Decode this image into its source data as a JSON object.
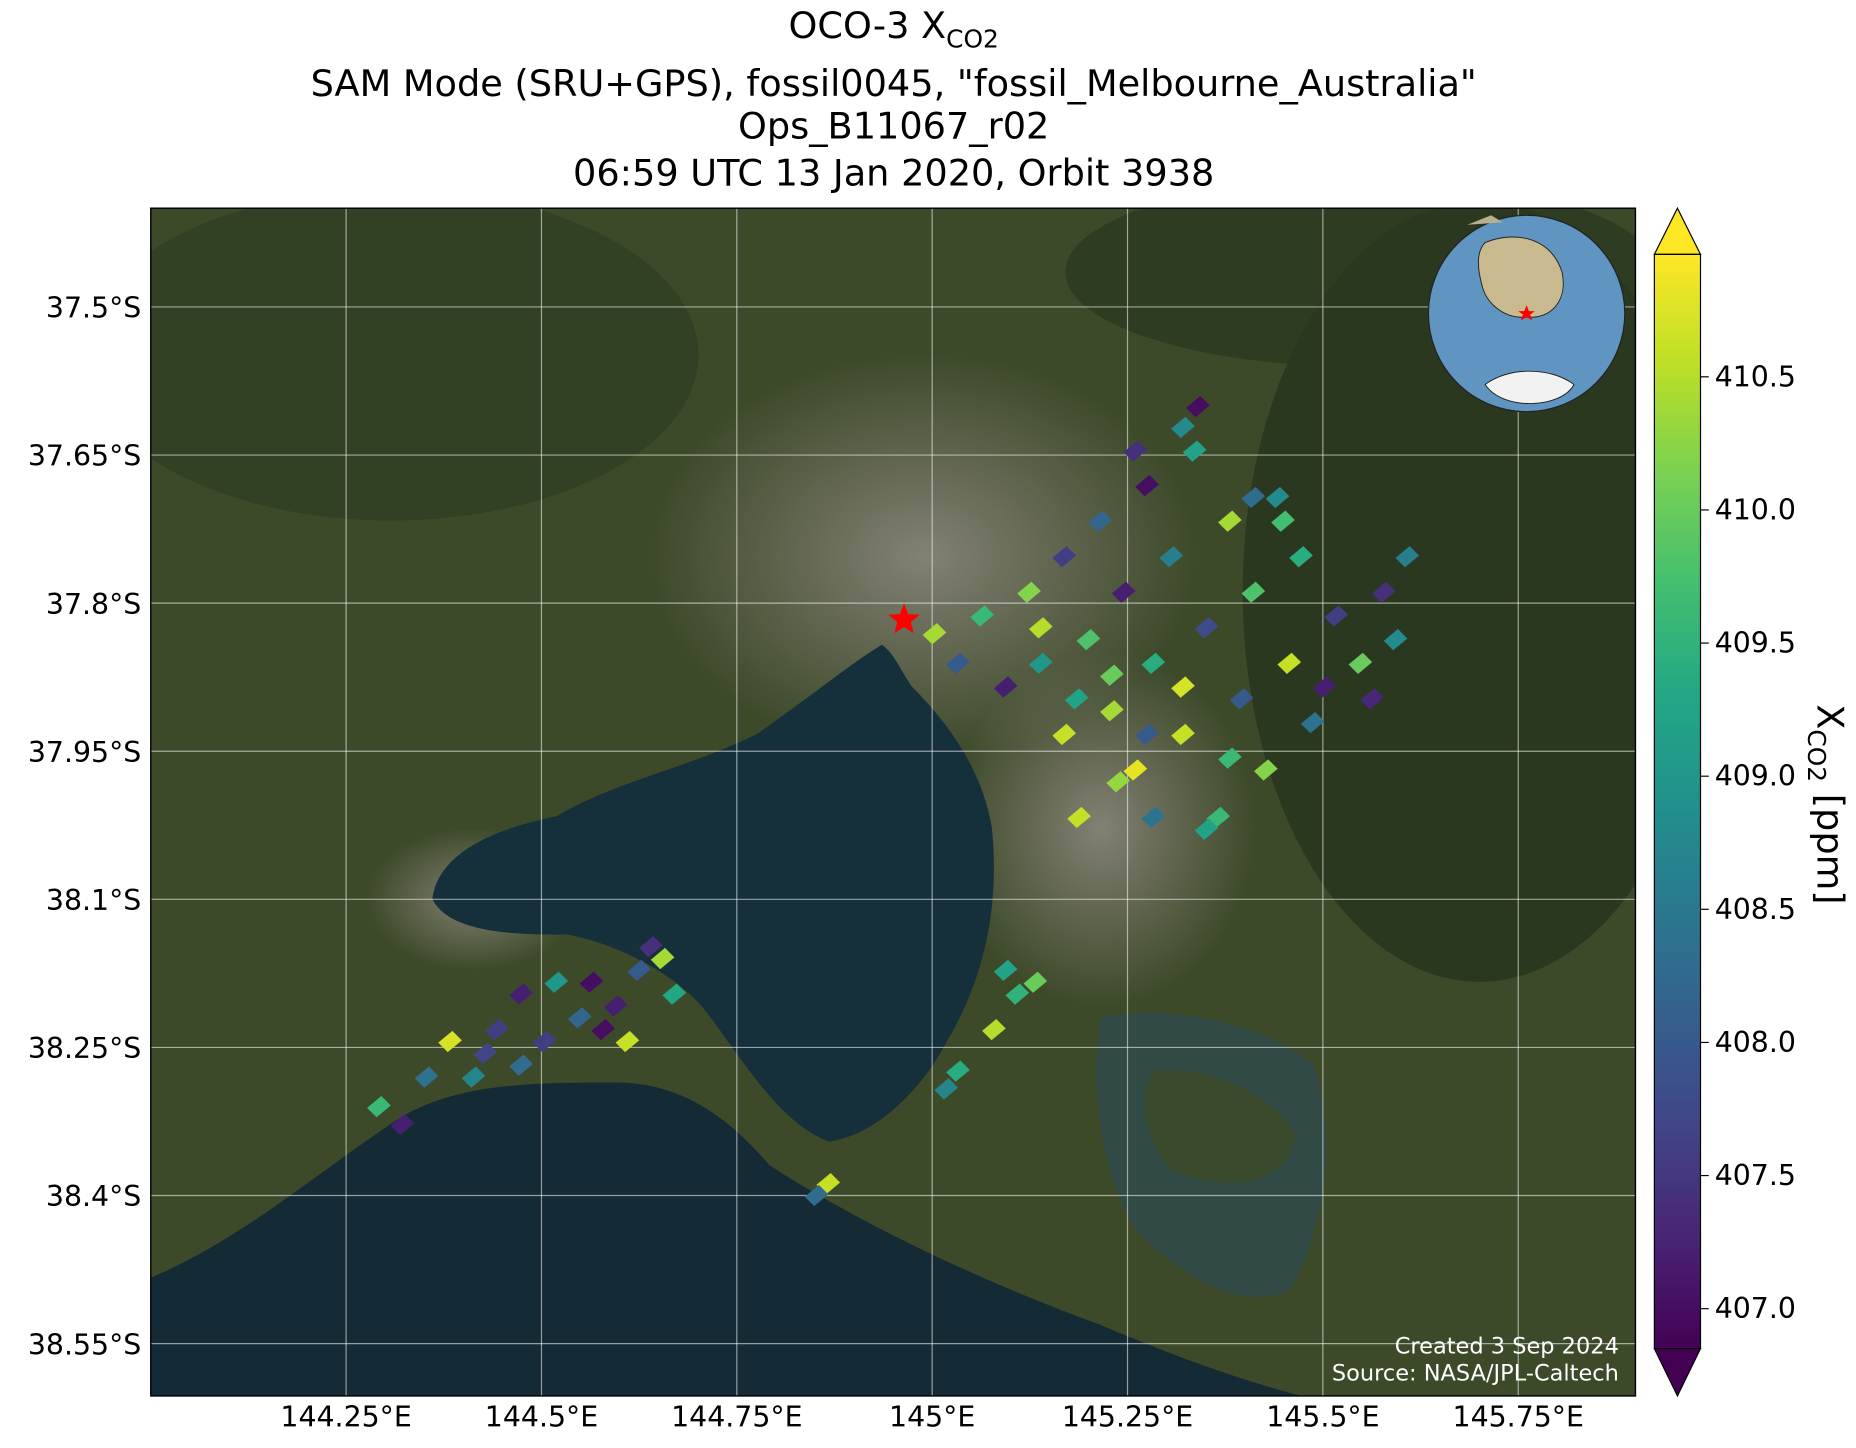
{
  "title": "OCO-3 X",
  "title_subscript": "CO2",
  "subtitle": [
    "SAM Mode (SRU+GPS), fossil0045, \"fossil_Melbourne_Australia\"",
    "Ops_B11067_r02",
    "06:59 UTC 13 Jan 2020, Orbit 3938"
  ],
  "map": {
    "xlim": [
      144.0,
      145.9
    ],
    "ylim": [
      -38.603,
      -37.4
    ],
    "grid": true,
    "xticks": [
      {
        "value": 144.25,
        "label": "144.25°E"
      },
      {
        "value": 144.5,
        "label": "144.5°E"
      },
      {
        "value": 144.75,
        "label": "144.75°E"
      },
      {
        "value": 145.0,
        "label": "145°E"
      },
      {
        "value": 145.25,
        "label": "145.25°E"
      },
      {
        "value": 145.5,
        "label": "145.5°E"
      },
      {
        "value": 145.75,
        "label": "145.75°E"
      }
    ],
    "yticks": [
      {
        "value": -37.5,
        "label": "37.5°S"
      },
      {
        "value": -37.65,
        "label": "37.65°S"
      },
      {
        "value": -37.8,
        "label": "37.8°S"
      },
      {
        "value": -37.95,
        "label": "37.95°S"
      },
      {
        "value": -38.1,
        "label": "38.1°S"
      },
      {
        "value": -38.25,
        "label": "38.25°S"
      },
      {
        "value": -38.4,
        "label": "38.4°S"
      },
      {
        "value": -38.55,
        "label": "38.55°S"
      }
    ]
  },
  "colorbar": {
    "label": "X",
    "label_subscript": "CO2",
    "label_unit": " [ppm]",
    "colormap": "viridis",
    "clim": [
      406.85,
      410.96
    ],
    "ticks": [
      {
        "value": 407.0,
        "label": "407.0"
      },
      407.5,
      {
        "value": 408.0,
        "label": "408.0"
      },
      408.5,
      {
        "value": 409.0,
        "label": "409.0"
      },
      409.5,
      {
        "value": 410.0,
        "label": "410.0"
      },
      410.5
    ]
  },
  "target": {
    "lon": 144.964,
    "lat": -37.817
  },
  "soundings": {
    "lon": [
      145.003,
      145.033,
      145.064,
      145.094,
      145.124,
      145.139,
      145.169,
      145.169,
      145.2,
      145.215,
      145.23,
      145.245,
      145.26,
      145.275,
      145.283,
      145.306,
      145.321,
      145.336,
      145.351,
      145.366,
      145.381,
      145.396,
      145.411,
      145.427,
      145.442,
      145.457,
      145.472,
      145.487,
      145.517,
      145.548,
      145.578,
      145.593,
      145.26,
      145.321,
      145.351,
      145.23,
      145.185,
      145.139,
      145.502,
      145.563,
      145.411,
      145.449,
      145.321,
      145.275,
      145.188,
      145.283,
      145.34,
      145.608,
      145.381,
      145.238,
      144.292,
      144.322,
      144.353,
      144.383,
      144.413,
      144.443,
      144.474,
      144.504,
      144.519,
      144.549,
      144.564,
      144.595,
      144.61,
      144.625,
      144.655,
      144.67,
      144.64,
      144.579,
      144.474,
      144.428,
      145.079,
      145.109,
      145.094,
      145.132,
      145.018,
      145.033,
      144.867,
      144.852
    ],
    "lat": [
      -37.831,
      -37.861,
      -37.813,
      -37.885,
      -37.789,
      -37.861,
      -37.753,
      -37.933,
      -37.837,
      -37.717,
      -37.909,
      -37.789,
      -37.969,
      -37.681,
      -37.861,
      -37.753,
      -37.933,
      -37.646,
      -37.825,
      -38.017,
      -37.717,
      -37.897,
      -37.789,
      -37.969,
      -37.693,
      -37.861,
      -37.753,
      -37.921,
      -37.813,
      -37.861,
      -37.789,
      -37.837,
      -37.646,
      -37.622,
      -38.029,
      -37.873,
      -37.897,
      -37.825,
      -37.885,
      -37.897,
      -37.693,
      -37.717,
      -37.885,
      -37.933,
      -38.017,
      -38.017,
      -37.601,
      -37.753,
      -37.957,
      -37.981,
      -38.31,
      -38.328,
      -38.28,
      -38.244,
      -38.28,
      -38.232,
      -38.196,
      -38.244,
      -38.184,
      -38.22,
      -38.184,
      -38.208,
      -38.244,
      -38.172,
      -38.16,
      -38.196,
      -38.148,
      -38.232,
      -38.268,
      -38.256,
      -38.232,
      -38.196,
      -38.172,
      -38.184,
      -38.292,
      -38.274,
      -38.388,
      -38.4
    ],
    "xco2": [
      410.4,
      408.0,
      409.6,
      407.2,
      410.2,
      409.0,
      407.6,
      410.6,
      409.8,
      408.2,
      410.4,
      407.2,
      410.8,
      407.0,
      409.4,
      408.6,
      410.6,
      409.2,
      407.8,
      409.6,
      410.4,
      408.0,
      409.8,
      410.2,
      408.8,
      410.6,
      409.4,
      408.4,
      407.6,
      410.0,
      407.4,
      408.8,
      407.4,
      408.8,
      409.2,
      410.0,
      409.2,
      410.5,
      407.2,
      407.3,
      408.3,
      409.7,
      410.7,
      408.0,
      410.6,
      408.4,
      407.0,
      408.6,
      409.6,
      410.3,
      409.6,
      407.2,
      408.4,
      410.7,
      408.7,
      407.6,
      407.2,
      407.6,
      409.0,
      408.2,
      407.0,
      407.2,
      410.6,
      408.0,
      410.4,
      409.3,
      407.4,
      407.0,
      408.3,
      407.7,
      410.5,
      409.5,
      409.2,
      410.0,
      408.7,
      409.4,
      410.6,
      408.3
    ]
  },
  "credits": [
    "Created 3 Sep 2024",
    "Source: NASA/JPL-Caltech"
  ]
}
